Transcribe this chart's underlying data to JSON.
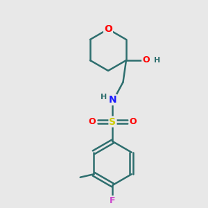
{
  "background_color": "#e8e8e8",
  "bond_color": "#2d6e6e",
  "bond_width": 1.8,
  "atom_colors": {
    "O": "#ff0000",
    "N": "#1a1aff",
    "S": "#cccc00",
    "F": "#cc44cc",
    "C": "#2d6e6e",
    "H": "#2d6e6e"
  },
  "font_size": 9,
  "title": ""
}
